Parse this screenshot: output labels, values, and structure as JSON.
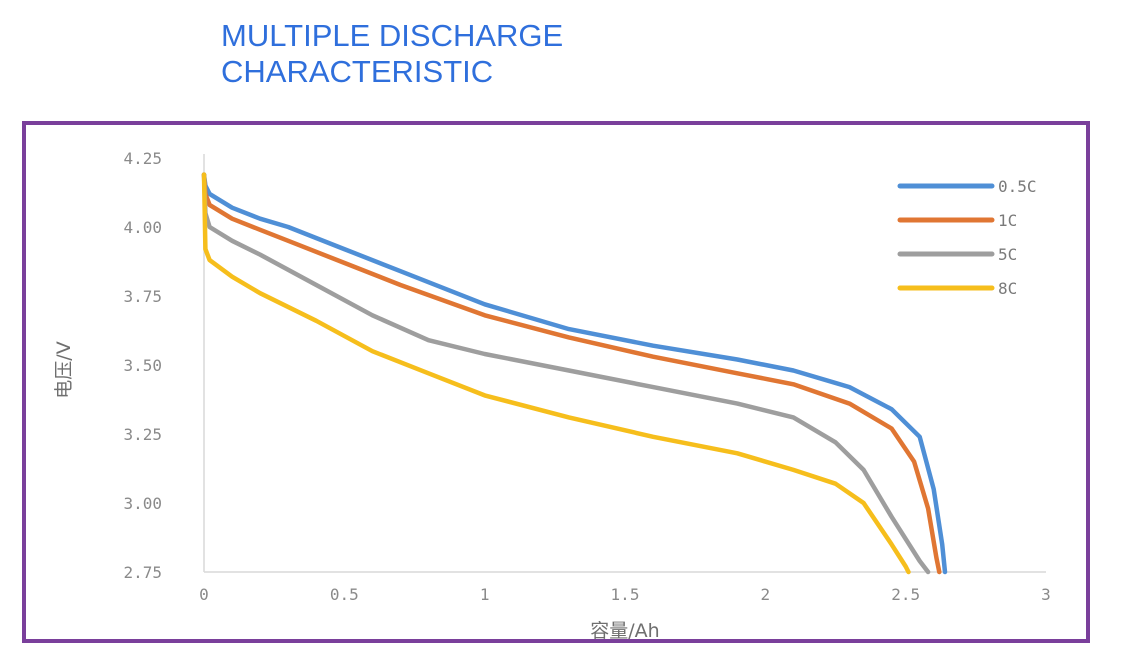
{
  "title": {
    "line1": "MULTIPLE DISCHARGE",
    "line2": "CHARACTERISTIC"
  },
  "colors": {
    "title": "#2f6fdc",
    "frame": "#7a3f9b",
    "axis": "#d9d9d9"
  },
  "chart_data": {
    "type": "line",
    "xlabel": "容量/Ah",
    "ylabel": "电压/V",
    "xlim": [
      0,
      3
    ],
    "ylim": [
      2.75,
      4.25
    ],
    "x_ticks": [
      0,
      0.5,
      1,
      1.5,
      2,
      2.5,
      3
    ],
    "x_tick_labels": [
      "0",
      "0.5",
      "1",
      "1.5",
      "2",
      "2.5",
      "3"
    ],
    "y_ticks": [
      4.25,
      4.0,
      3.75,
      3.5,
      3.25,
      3.0,
      2.75
    ],
    "y_tick_labels": [
      "4.25",
      "4.00",
      "3.75",
      "3.50",
      "3.25",
      "3.00",
      "2.75"
    ],
    "grid": false,
    "legend_position": "top-right",
    "series": [
      {
        "name": "0.5C",
        "color": "#4f8fd6",
        "points": [
          [
            0,
            4.19
          ],
          [
            0.005,
            4.15
          ],
          [
            0.02,
            4.12
          ],
          [
            0.1,
            4.07
          ],
          [
            0.2,
            4.03
          ],
          [
            0.3,
            4.0
          ],
          [
            0.5,
            3.92
          ],
          [
            0.7,
            3.84
          ],
          [
            1.0,
            3.72
          ],
          [
            1.3,
            3.63
          ],
          [
            1.6,
            3.57
          ],
          [
            1.9,
            3.52
          ],
          [
            2.1,
            3.48
          ],
          [
            2.3,
            3.42
          ],
          [
            2.45,
            3.34
          ],
          [
            2.55,
            3.24
          ],
          [
            2.6,
            3.05
          ],
          [
            2.63,
            2.85
          ],
          [
            2.64,
            2.75
          ]
        ]
      },
      {
        "name": "1C",
        "color": "#e07633",
        "points": [
          [
            0,
            4.19
          ],
          [
            0.005,
            4.12
          ],
          [
            0.02,
            4.08
          ],
          [
            0.1,
            4.03
          ],
          [
            0.2,
            3.99
          ],
          [
            0.3,
            3.95
          ],
          [
            0.5,
            3.87
          ],
          [
            0.7,
            3.79
          ],
          [
            1.0,
            3.68
          ],
          [
            1.3,
            3.6
          ],
          [
            1.6,
            3.53
          ],
          [
            1.9,
            3.47
          ],
          [
            2.1,
            3.43
          ],
          [
            2.3,
            3.36
          ],
          [
            2.45,
            3.27
          ],
          [
            2.53,
            3.15
          ],
          [
            2.58,
            2.98
          ],
          [
            2.61,
            2.8
          ],
          [
            2.62,
            2.75
          ]
        ]
      },
      {
        "name": "5C",
        "color": "#9e9e9e",
        "points": [
          [
            0,
            4.19
          ],
          [
            0.005,
            4.05
          ],
          [
            0.02,
            4.0
          ],
          [
            0.1,
            3.95
          ],
          [
            0.2,
            3.9
          ],
          [
            0.4,
            3.79
          ],
          [
            0.6,
            3.68
          ],
          [
            0.8,
            3.59
          ],
          [
            1.0,
            3.54
          ],
          [
            1.3,
            3.48
          ],
          [
            1.6,
            3.42
          ],
          [
            1.9,
            3.36
          ],
          [
            2.1,
            3.31
          ],
          [
            2.25,
            3.22
          ],
          [
            2.35,
            3.12
          ],
          [
            2.45,
            2.95
          ],
          [
            2.55,
            2.79
          ],
          [
            2.58,
            2.75
          ]
        ]
      },
      {
        "name": "8C",
        "color": "#f6be1c",
        "points": [
          [
            0,
            4.19
          ],
          [
            0.005,
            3.92
          ],
          [
            0.02,
            3.88
          ],
          [
            0.1,
            3.82
          ],
          [
            0.2,
            3.76
          ],
          [
            0.4,
            3.66
          ],
          [
            0.6,
            3.55
          ],
          [
            0.8,
            3.47
          ],
          [
            1.0,
            3.39
          ],
          [
            1.3,
            3.31
          ],
          [
            1.6,
            3.24
          ],
          [
            1.9,
            3.18
          ],
          [
            2.1,
            3.12
          ],
          [
            2.25,
            3.07
          ],
          [
            2.35,
            3.0
          ],
          [
            2.45,
            2.85
          ],
          [
            2.5,
            2.77
          ],
          [
            2.51,
            2.75
          ]
        ]
      }
    ]
  }
}
